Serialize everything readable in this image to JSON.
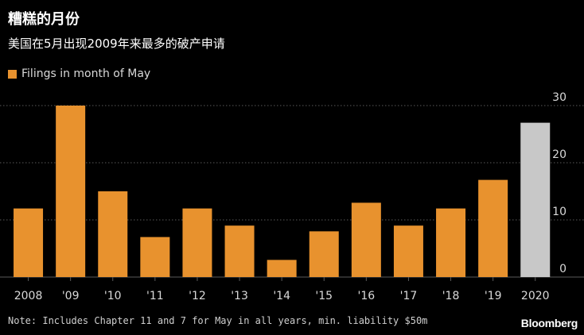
{
  "title": "糟糕的月份",
  "subtitle": "美国在5月出现2009年来最多的破产申请",
  "legend_label": "Filings in month of May",
  "note": "Note: Includes Chapter 11 and 7 for May in all years, min. liability $50m",
  "brand": "Bloomberg",
  "colors": {
    "bar": "#e8922e",
    "highlight_bar": "#c8c8c8",
    "grid": "#5a5a5a",
    "axis_text": "#d9d9d9",
    "background": "#000000"
  },
  "chart_data": {
    "type": "bar",
    "categories": [
      "2008",
      "'09",
      "'10",
      "'11",
      "'12",
      "'13",
      "'14",
      "'15",
      "'16",
      "'17",
      "'18",
      "'19",
      "2020"
    ],
    "series": [
      {
        "name": "Filings in month of May",
        "values": [
          12,
          30,
          15,
          7,
          12,
          9,
          3,
          8,
          13,
          9,
          12,
          17,
          27
        ]
      }
    ],
    "highlight_index": 12,
    "ylim": [
      0,
      30
    ],
    "yticks": [
      0,
      10,
      20,
      30
    ],
    "y_axis_side": "right",
    "grid": true,
    "legend_position": "top-left"
  }
}
